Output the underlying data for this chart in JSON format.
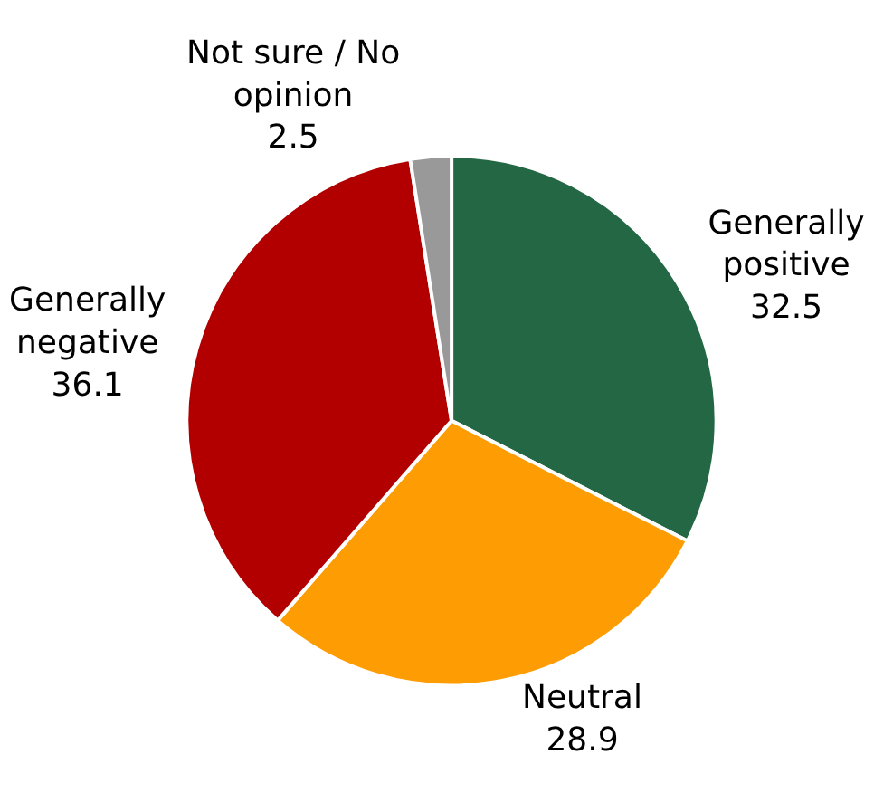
{
  "chart_data": {
    "type": "pie",
    "categories": [
      "Generally positive",
      "Neutral",
      "Generally negative",
      "Not sure / No opinion"
    ],
    "values": [
      32.5,
      28.9,
      36.1,
      2.5
    ],
    "colors": [
      "#236744",
      "#fe9c04",
      "#b20000",
      "#999999"
    ],
    "data_labels": true
  }
}
